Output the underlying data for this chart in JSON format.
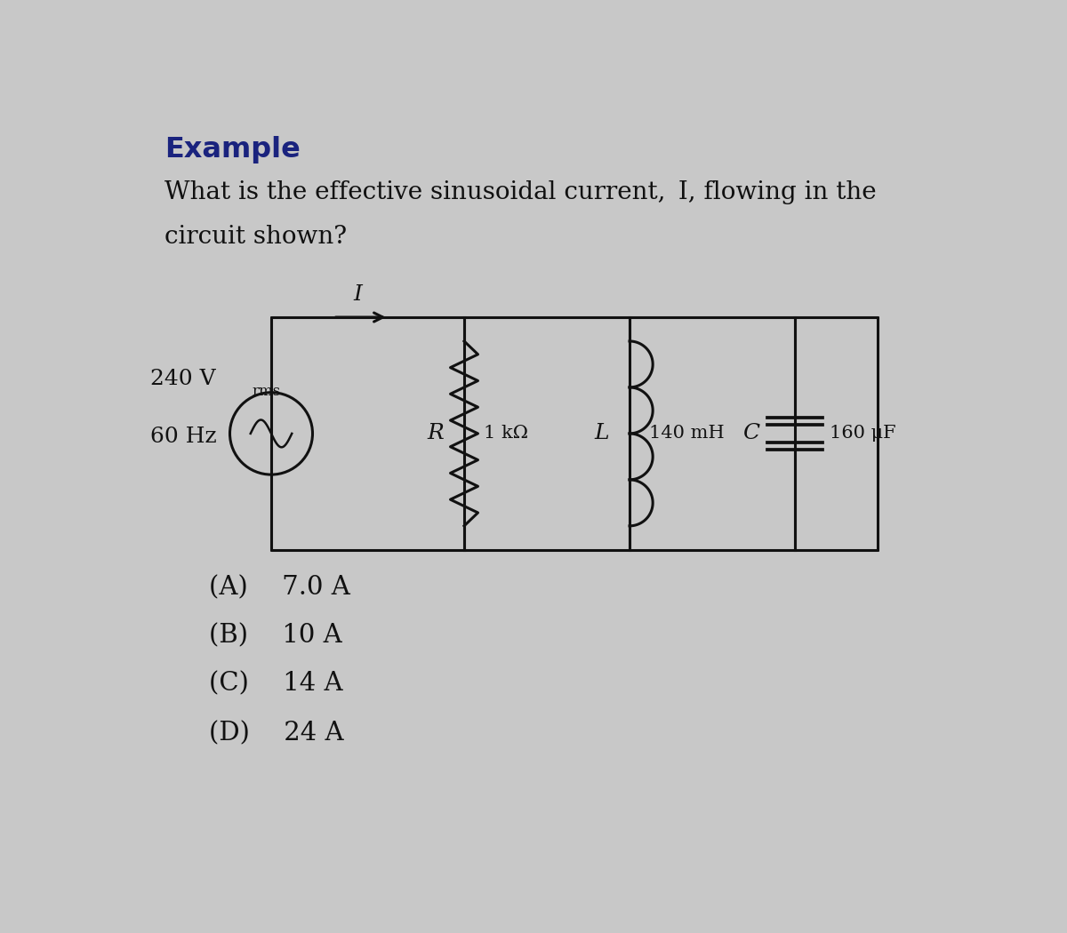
{
  "title": "Example",
  "title_color": "#1a237e",
  "question_line1": "What is the effective sinusoidal current,  I, flowing in the",
  "question_line2": "circuit shown?",
  "voltage": "240 V",
  "voltage_sub": "rms",
  "frequency": "60 Hz",
  "R_label": "R",
  "R_value": "1 kΩ",
  "L_label": "L",
  "L_value": "140 mH",
  "C_label": "C",
  "C_value": "160 μF",
  "I_label": "I",
  "choices": [
    "(A)  7.0 A",
    "(B)  10 A",
    "(C)  14 A",
    "(D)  24 A"
  ],
  "bg_color": "#c8c8c8",
  "line_color": "#111111",
  "text_color": "#111111"
}
